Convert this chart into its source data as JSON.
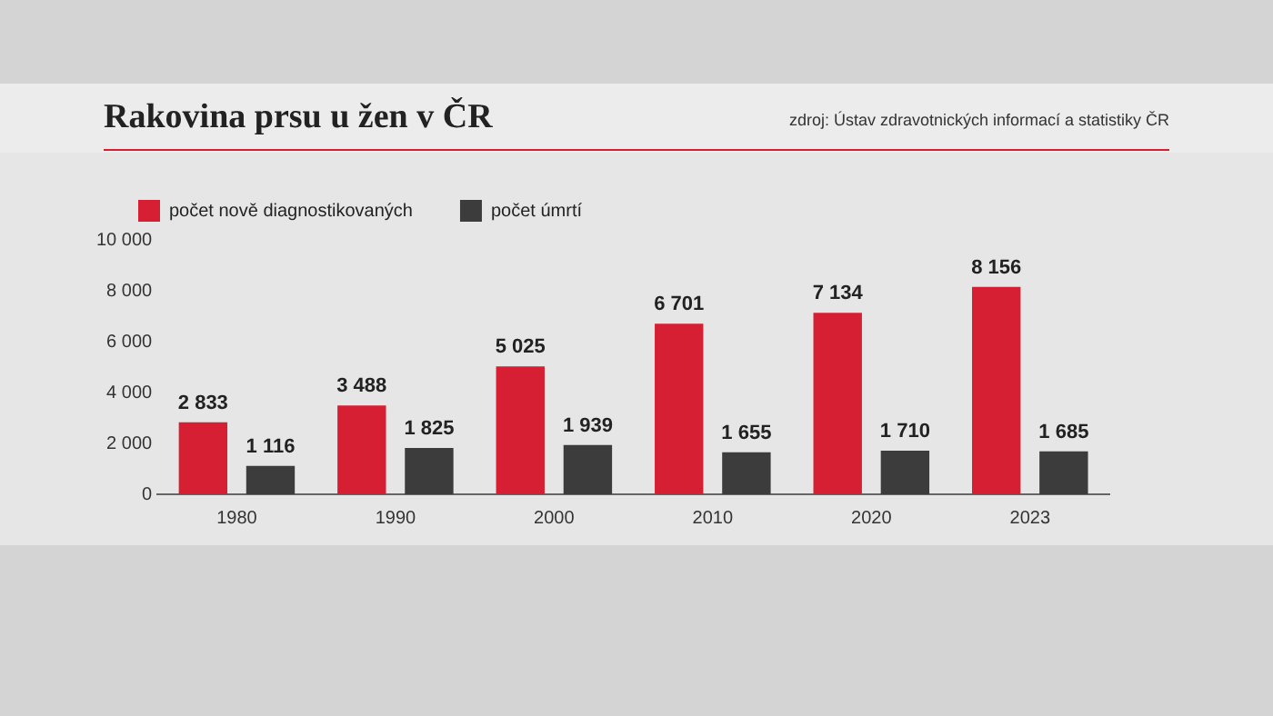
{
  "chart_data": {
    "type": "bar",
    "title": "Rakovina prsu u žen v ČR",
    "annotations": [
      "zdroj: Ústav zdravotnických informací a statistiky ČR"
    ],
    "categories": [
      "1980",
      "1990",
      "2000",
      "2010",
      "2020",
      "2023"
    ],
    "series": [
      {
        "name": "počet nově diagnostikovaných",
        "color": "#d71f33",
        "values": [
          2833,
          3488,
          5025,
          6701,
          7134,
          8156
        ],
        "value_labels": [
          "2 833",
          "3 488",
          "5 025",
          "6 701",
          "7 134",
          "8 156"
        ]
      },
      {
        "name": "počet úmrtí",
        "color": "#3c3c3c",
        "values": [
          1116,
          1825,
          1939,
          1655,
          1710,
          1685
        ],
        "value_labels": [
          "1 116",
          "1 825",
          "1 939",
          "1 655",
          "1 710",
          "1 685"
        ]
      }
    ],
    "ylim": [
      0,
      10000
    ],
    "yticks": [
      {
        "value": 0,
        "label": "0"
      },
      {
        "value": 2000,
        "label": "2 000"
      },
      {
        "value": 4000,
        "label": "4 000"
      },
      {
        "value": 6000,
        "label": "6 000"
      },
      {
        "value": 8000,
        "label": "8 000"
      },
      {
        "value": 10000,
        "label": "10 000"
      }
    ],
    "grid": false,
    "legend": "top left"
  }
}
